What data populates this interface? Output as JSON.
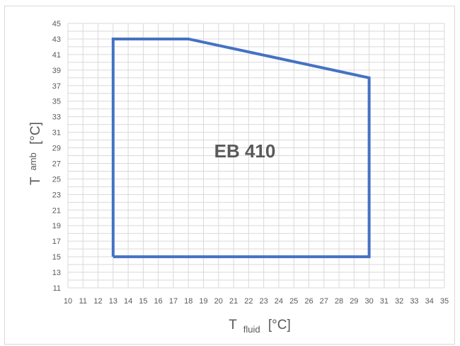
{
  "chart_data": {
    "type": "line",
    "annotation": "EB 410",
    "xlabel": {
      "main": "T",
      "sub": "fluid",
      "unit": "[°C]"
    },
    "ylabel": {
      "main": "T",
      "sub": "amb",
      "unit": "[°C]"
    },
    "xlim": [
      10,
      35
    ],
    "ylim": [
      11,
      45
    ],
    "xticks": [
      10,
      11,
      12,
      13,
      14,
      15,
      16,
      17,
      18,
      19,
      20,
      21,
      22,
      23,
      24,
      25,
      26,
      27,
      28,
      29,
      30,
      31,
      32,
      33,
      34,
      35
    ],
    "yticks": [
      11,
      13,
      15,
      17,
      19,
      21,
      23,
      25,
      27,
      29,
      31,
      33,
      35,
      37,
      39,
      41,
      43,
      45
    ],
    "grid": true,
    "series": [
      {
        "color": "#4472c4",
        "x": [
          13,
          13,
          18,
          30,
          30,
          13
        ],
        "y": [
          15,
          43,
          43,
          38,
          15,
          15
        ]
      }
    ]
  }
}
